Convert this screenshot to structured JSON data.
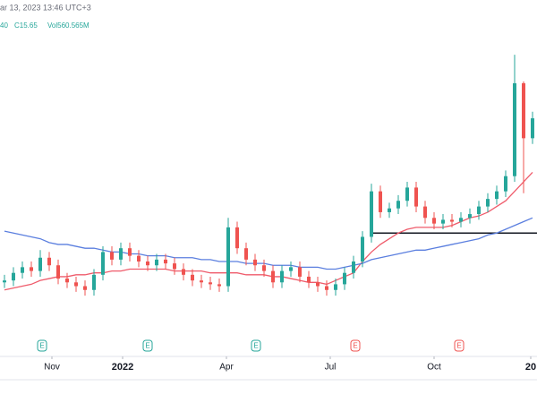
{
  "header": {
    "datetime": "ar 13, 2023 13:46 UTC+3",
    "change": "40",
    "close": "C15.65",
    "volume": "Vol560.565M"
  },
  "chart_data": {
    "type": "candlestick",
    "up_color": "#26a69a",
    "down_color": "#ef5350",
    "ylim": [
      3,
      20
    ],
    "xlim": [
      0,
      60
    ],
    "xticks": [
      {
        "value": 5.3,
        "label": "Nov"
      },
      {
        "value": 13.2,
        "label": "2022"
      },
      {
        "value": 24.8,
        "label": "Apr"
      },
      {
        "value": 36.4,
        "label": "Jul"
      },
      {
        "value": 48.0,
        "label": "Oct"
      },
      {
        "value": 58.8,
        "label": "20"
      }
    ],
    "open": [
      7.0,
      7.1,
      7.5,
      7.8,
      7.6,
      8.3,
      7.9,
      7.2,
      7.0,
      6.8,
      6.6,
      7.4,
      8.6,
      8.2,
      8.8,
      8.4,
      8.1,
      7.9,
      8.2,
      8.0,
      7.7,
      7.4,
      7.1,
      7.0,
      6.9,
      6.8,
      9.9,
      8.8,
      8.2,
      7.9,
      7.6,
      7.0,
      7.6,
      7.8,
      7.3,
      7.0,
      6.8,
      6.6,
      6.9,
      7.5,
      8.1,
      9.4,
      11.8,
      10.7,
      10.9,
      11.3,
      12.0,
      11.0,
      10.4,
      10.1,
      10.3,
      10.2,
      10.4,
      10.6,
      11.0,
      11.4,
      11.8,
      12.6,
      17.5,
      14.6
    ],
    "high": [
      7.4,
      7.8,
      8.1,
      8.1,
      8.7,
      8.6,
      8.2,
      7.5,
      7.3,
      7.1,
      7.7,
      8.9,
      8.9,
      9.1,
      9.1,
      8.7,
      8.4,
      8.5,
      8.5,
      8.3,
      8.0,
      7.7,
      7.4,
      7.3,
      7.2,
      10.4,
      10.2,
      9.1,
      8.5,
      8.2,
      7.9,
      7.9,
      8.1,
      8.1,
      7.6,
      7.3,
      7.1,
      7.2,
      7.8,
      8.4,
      9.7,
      12.2,
      12.1,
      11.2,
      11.6,
      12.3,
      12.3,
      11.3,
      10.7,
      10.6,
      10.6,
      10.7,
      10.9,
      11.3,
      11.7,
      12.1,
      12.9,
      19.0,
      17.6,
      16.0
    ],
    "low": [
      6.7,
      6.8,
      7.2,
      7.3,
      7.3,
      7.6,
      6.9,
      6.7,
      6.5,
      6.3,
      6.3,
      7.1,
      7.9,
      7.9,
      8.1,
      7.8,
      7.6,
      7.6,
      7.7,
      7.4,
      7.1,
      6.8,
      6.7,
      6.6,
      6.5,
      6.5,
      8.5,
      7.9,
      7.6,
      7.3,
      6.7,
      6.7,
      7.3,
      7.0,
      6.7,
      6.5,
      6.3,
      6.3,
      6.6,
      7.2,
      7.8,
      9.1,
      10.4,
      10.4,
      10.6,
      11.0,
      10.7,
      10.1,
      9.8,
      9.8,
      9.9,
      9.9,
      10.1,
      10.3,
      10.7,
      11.1,
      11.5,
      12.3,
      11.7,
      14.3
    ],
    "close": [
      7.1,
      7.5,
      7.8,
      7.6,
      8.3,
      7.9,
      7.2,
      7.0,
      6.8,
      6.6,
      7.4,
      8.6,
      8.2,
      8.8,
      8.4,
      8.1,
      7.9,
      8.2,
      8.0,
      7.7,
      7.4,
      7.1,
      7.0,
      6.9,
      6.8,
      9.9,
      8.8,
      8.2,
      7.9,
      7.6,
      7.0,
      7.6,
      7.8,
      7.3,
      7.0,
      6.8,
      6.6,
      6.9,
      7.5,
      8.1,
      9.4,
      11.8,
      10.7,
      10.9,
      11.3,
      12.0,
      11.0,
      10.4,
      10.1,
      10.3,
      10.2,
      10.4,
      10.6,
      11.0,
      11.4,
      11.8,
      12.6,
      17.5,
      14.6,
      15.65
    ],
    "series": [
      {
        "color": "#ef5b6b",
        "values": [
          6.6,
          6.7,
          6.8,
          6.9,
          7.1,
          7.2,
          7.3,
          7.3,
          7.4,
          7.4,
          7.5,
          7.5,
          7.6,
          7.6,
          7.7,
          7.7,
          7.7,
          7.7,
          7.7,
          7.6,
          7.6,
          7.6,
          7.6,
          7.5,
          7.5,
          7.5,
          7.5,
          7.4,
          7.4,
          7.4,
          7.3,
          7.3,
          7.2,
          7.1,
          7.0,
          7.0,
          6.9,
          7.1,
          7.3,
          7.5,
          8.1,
          8.6,
          9.0,
          9.3,
          9.6,
          9.8,
          9.9,
          9.9,
          9.9,
          9.9,
          10.0,
          10.2,
          10.4,
          10.5,
          10.7,
          11.0,
          11.3,
          11.8,
          12.3,
          12.8
        ]
      },
      {
        "color": "#5b7fdf",
        "values": [
          9.7,
          9.6,
          9.5,
          9.4,
          9.3,
          9.1,
          9.0,
          9.0,
          8.9,
          8.8,
          8.8,
          8.7,
          8.6,
          8.6,
          8.5,
          8.5,
          8.4,
          8.4,
          8.4,
          8.3,
          8.3,
          8.3,
          8.2,
          8.2,
          8.1,
          8.1,
          8.1,
          8.0,
          8.0,
          8.0,
          7.9,
          7.9,
          7.9,
          7.8,
          7.8,
          7.8,
          7.7,
          7.7,
          7.8,
          7.9,
          8.0,
          8.2,
          8.3,
          8.4,
          8.5,
          8.6,
          8.7,
          8.7,
          8.8,
          8.9,
          9.0,
          9.1,
          9.2,
          9.3,
          9.5,
          9.6,
          9.8,
          10.0,
          10.2,
          10.4
        ]
      }
    ],
    "hline": {
      "value": 9.6,
      "from": 41,
      "color": "#131722"
    },
    "earnings": [
      {
        "value": 4.2,
        "label": "E",
        "color": "#26a69a"
      },
      {
        "value": 16.0,
        "label": "E",
        "color": "#26a69a"
      },
      {
        "value": 28.1,
        "label": "E",
        "color": "#26a69a"
      },
      {
        "value": 39.2,
        "label": "E",
        "color": "#ef5350"
      },
      {
        "value": 50.8,
        "label": "E",
        "color": "#ef5350"
      }
    ]
  }
}
